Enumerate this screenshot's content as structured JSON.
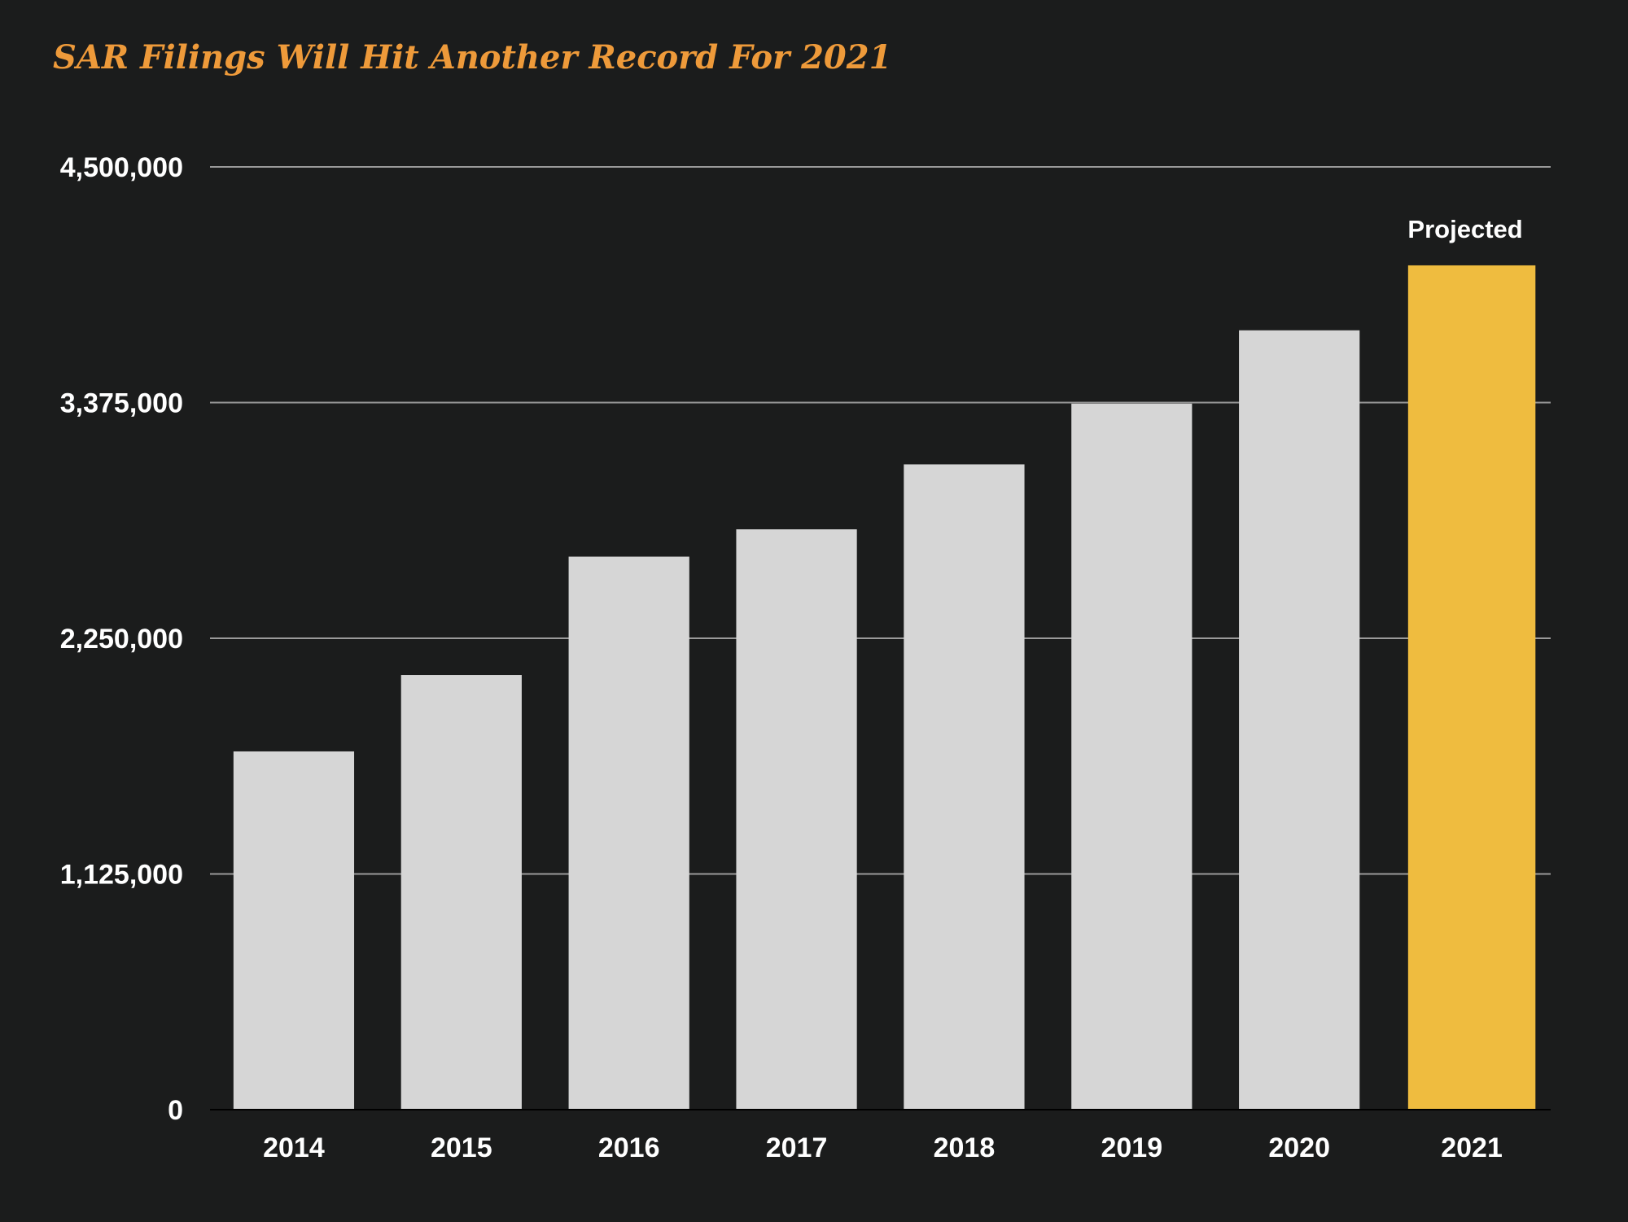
{
  "chart_data": {
    "type": "bar",
    "title": "SAR Filings Will Hit Another Record For 2021",
    "xlabel": "",
    "ylabel": "",
    "categories": [
      "2014",
      "2015",
      "2016",
      "2017",
      "2018",
      "2019",
      "2020",
      "2021"
    ],
    "values": [
      1710000,
      2075000,
      2640000,
      2770000,
      3080000,
      3370000,
      3720000,
      4030000
    ],
    "ylim": [
      0,
      4500000
    ],
    "y_ticks": [
      0,
      1125000,
      2250000,
      3375000,
      4500000
    ],
    "y_tick_labels": [
      "0",
      "1,125,000",
      "2,250,000",
      "3,375,000",
      "4,500,000"
    ],
    "grid": true,
    "legend": "none",
    "highlight": {
      "category": "2021",
      "label": "Projected",
      "color": "#efbc3f"
    },
    "colors": {
      "background": "#1b1c1c",
      "bar": "#d6d6d6",
      "highlight": "#efbc3f",
      "title": "#ee9a3a",
      "gridline": "#9a9a9a",
      "text": "#ffffff"
    }
  }
}
